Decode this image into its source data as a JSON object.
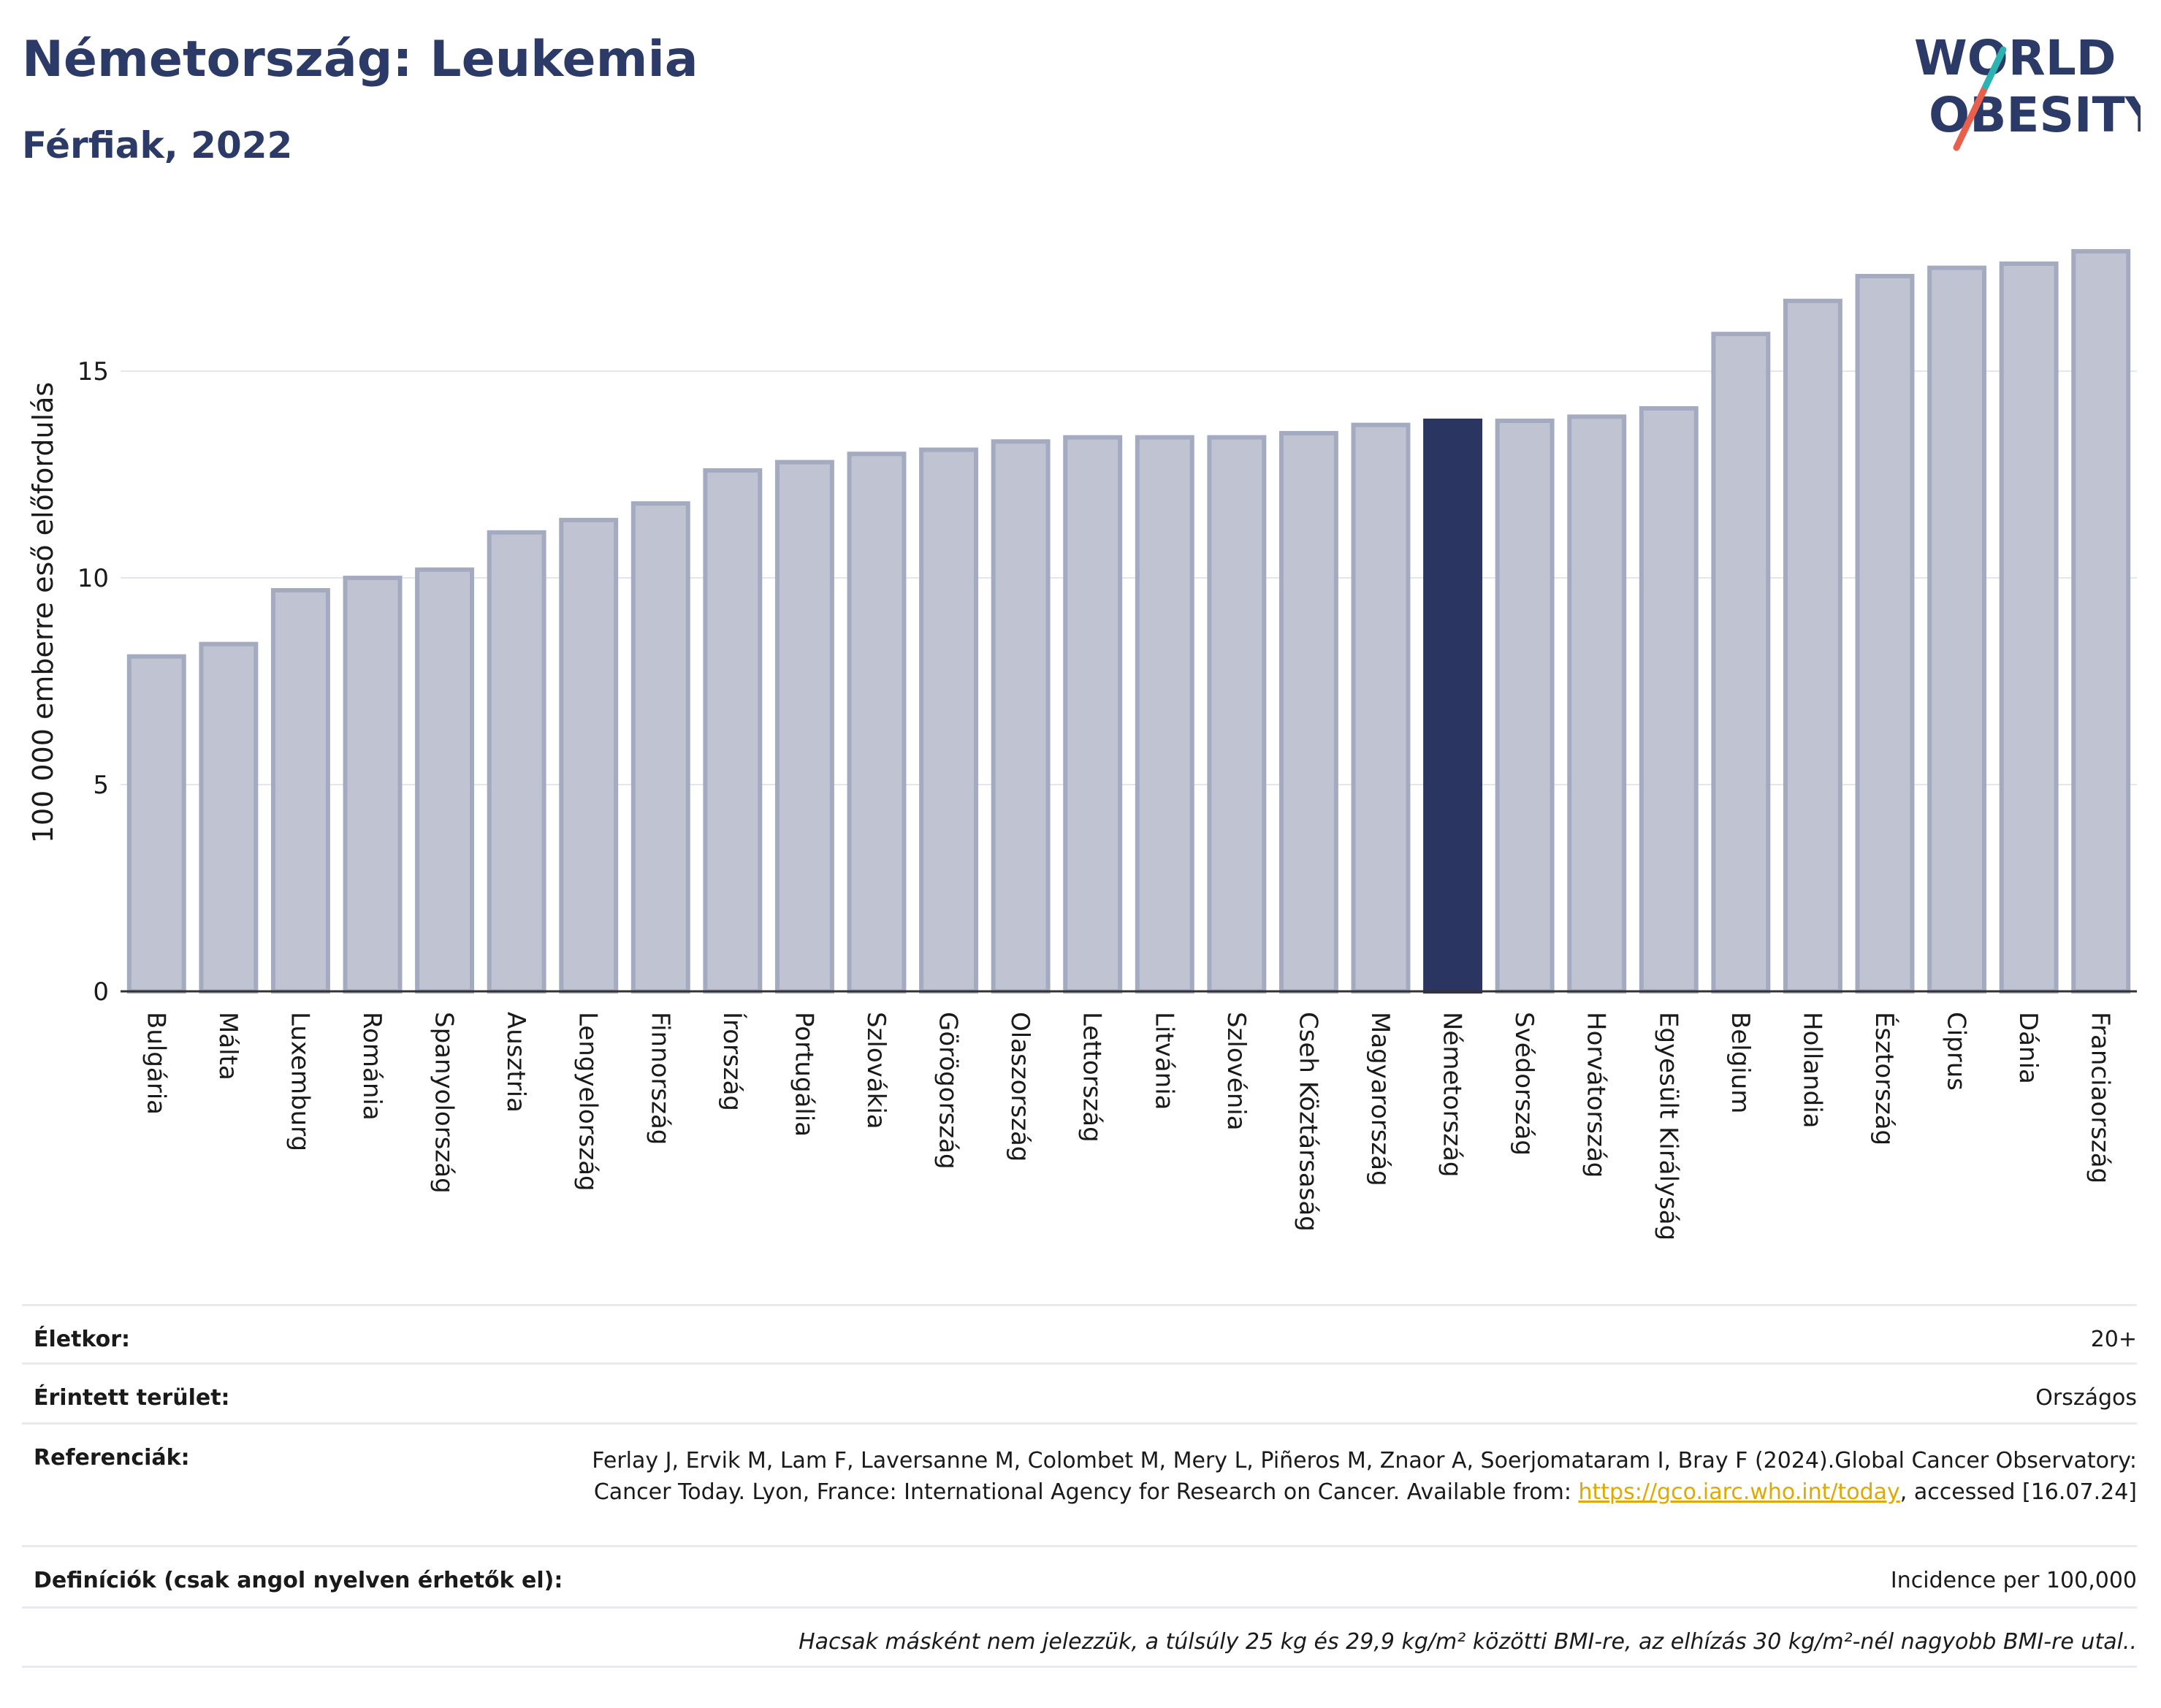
{
  "header": {
    "title": "Németország: Leukemia",
    "subtitle": "Férfiak, 2022"
  },
  "logo": {
    "line1": "WORLD",
    "line2": "OBESITY",
    "accent_teal": "#2bb3b1",
    "accent_red": "#e8604c",
    "text_color": "#2b3a67"
  },
  "chart_data": {
    "type": "bar",
    "ylabel": "100 000 emberre eső előfordulás",
    "ylim": [
      0,
      18.5
    ],
    "yticks": [
      0,
      5,
      10,
      15
    ],
    "grid": true,
    "highlight": "Németország",
    "colors": {
      "bar": "#c0c4d2",
      "bar_border": "#a4aac0",
      "highlight": "#2b3561"
    },
    "categories": [
      "Bulgária",
      "Málta",
      "Luxemburg",
      "Románia",
      "Spanyolország",
      "Ausztria",
      "Lengyelország",
      "Finnország",
      "Írország",
      "Portugália",
      "Szlovákia",
      "Görögország",
      "Olaszország",
      "Lettország",
      "Litvánia",
      "Szlovénia",
      "Cseh Köztársaság",
      "Magyarország",
      "Németország",
      "Svédország",
      "Horvátország",
      "Egyesült Királyság",
      "Belgium",
      "Hollandia",
      "Észtország",
      "Ciprus",
      "Dánia",
      "Franciaország"
    ],
    "values": [
      8.1,
      8.4,
      9.7,
      10.0,
      10.2,
      11.1,
      11.4,
      11.8,
      12.6,
      12.8,
      13.0,
      13.1,
      13.3,
      13.4,
      13.4,
      13.4,
      13.5,
      13.7,
      13.8,
      13.8,
      13.9,
      14.1,
      15.9,
      16.7,
      17.3,
      17.5,
      17.6,
      17.9
    ]
  },
  "meta": {
    "age_label": "Életkor:",
    "age_value": "20+",
    "area_label": "Érintett terület:",
    "area_value": "Országos",
    "ref_label": "Referenciák:",
    "ref_text_1": "Ferlay J, Ervik M, Lam F, Laversanne M, Colombet M, Mery L, Piñeros M, Znaor A, Soerjomataram I, Bray F (2024).Global Cancer Observatory: Cancer Today. Lyon, France: International Agency for Research on Cancer. Available from: ",
    "ref_link": "https://gco.iarc.who.int/today",
    "ref_text_2": ", accessed [16.07.24]",
    "def_label": "Definíciók (csak angol nyelven érhetők el):",
    "def_value": "Incidence per 100,000",
    "note": "Hacsak másként nem jelezzük, a túlsúly 25 kg és 29,9 kg/m² közötti BMI-re, az elhízás 30 kg/m²-nél nagyobb BMI-re utal.."
  }
}
